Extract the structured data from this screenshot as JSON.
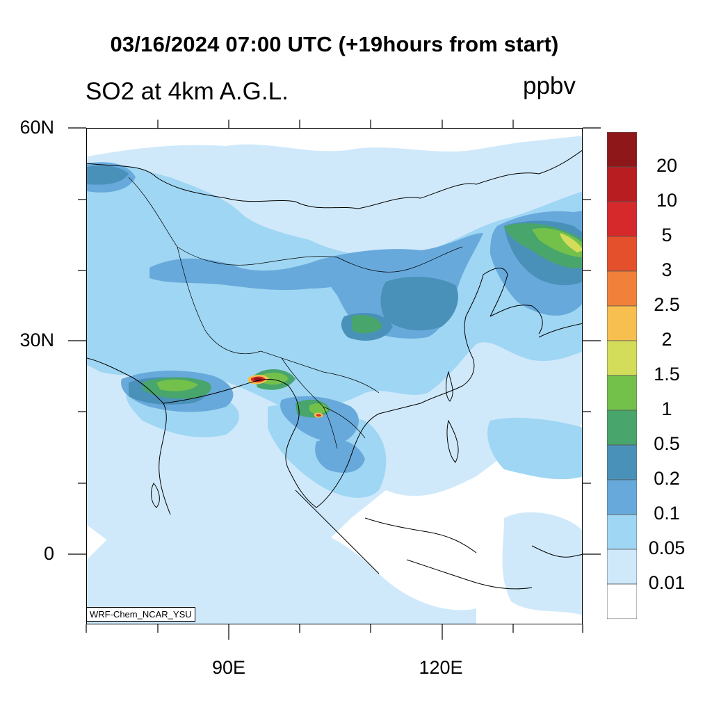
{
  "title": "03/16/2024 07:00 UTC (+19hours from start)",
  "subtitle_left": "SO2 at 4km A.G.L.",
  "units": "ppbv",
  "credit": "WRF-Chem_NCAR_YSU",
  "lat_labels": [
    "60N",
    "30N",
    "0"
  ],
  "lon_labels": [
    "90E",
    "120E"
  ],
  "colorbar": {
    "labels": [
      "20",
      "10",
      "5",
      "3",
      "2.5",
      "2",
      "1.5",
      "1",
      "0.5",
      "0.2",
      "0.1",
      "0.05",
      "0.01"
    ],
    "colors_top_to_bottom": [
      "#8e1719",
      "#b81d22",
      "#d6292b",
      "#e5502c",
      "#f1813a",
      "#f7bf4f",
      "#d3dd5a",
      "#73c14b",
      "#48a56c",
      "#4a91b9",
      "#68a9dc",
      "#9fd6f3",
      "#cfe9fb",
      "#ffffff"
    ]
  },
  "colors": {
    "coast": "#000000",
    "level_001": "#cfe9fb",
    "level_005": "#9fd6f3",
    "level_01": "#68a9dc",
    "level_02": "#4a91b9",
    "level_05": "#48a56c",
    "level_1": "#73c14b",
    "level_15": "#d3dd5a",
    "level_2": "#f7bf4f",
    "level_5": "#d6292b",
    "level_20": "#8e1719"
  }
}
